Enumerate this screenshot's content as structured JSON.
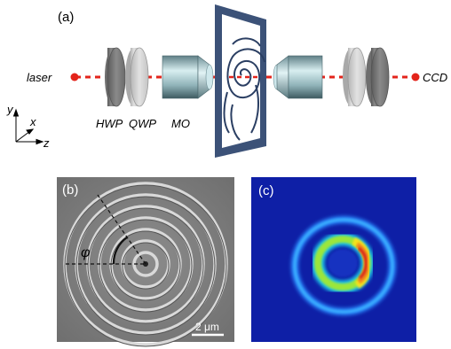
{
  "panels": {
    "a": {
      "tag": "(a)"
    },
    "b": {
      "tag": "(b)",
      "angle_symbol": "φ",
      "scale_bar": "2 μm"
    },
    "c": {
      "tag": "(c)"
    }
  },
  "setup": {
    "source": "laser",
    "detector": "CCD",
    "components": [
      "HWP",
      "QWP",
      "MO"
    ],
    "axes": {
      "y": "y",
      "x": "x",
      "z": "z"
    }
  },
  "colors": {
    "beam": "#e3241b",
    "frame": "#3c5278",
    "map_background": "#0e1fa6"
  }
}
